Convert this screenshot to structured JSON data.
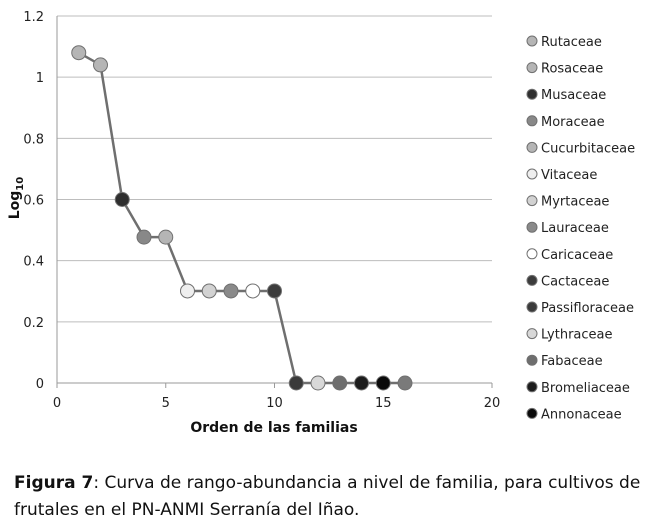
{
  "chart_data": {
    "type": "line",
    "title": "",
    "xlabel": "Orden de las familias",
    "ylabel": "Log",
    "ylabel_sub": "10",
    "xlim": [
      0,
      20
    ],
    "ylim": [
      0,
      1.2
    ],
    "x_ticks": [
      0,
      5,
      10,
      15,
      20
    ],
    "y_ticks": [
      0,
      0.2,
      0.4,
      0.6,
      0.8,
      1,
      1.2
    ],
    "y_tick_labels": [
      "0",
      "0.2",
      "0.4",
      "0.6",
      "0.8",
      "1",
      "1.2"
    ],
    "grid": "horizontal",
    "line_color": "#6f6f6f",
    "legend_position": "right",
    "series": [
      {
        "name": "Rutaceae",
        "x": 1,
        "y": 1.08,
        "color": "#b5b5b5"
      },
      {
        "name": "Rosaceae",
        "x": 2,
        "y": 1.04,
        "color": "#b5b5b5"
      },
      {
        "name": "Musaceae",
        "x": 3,
        "y": 0.6,
        "color": "#2f2f2f"
      },
      {
        "name": "Moraceae",
        "x": 4,
        "y": 0.477,
        "color": "#888888"
      },
      {
        "name": "Cucurbitaceae",
        "x": 5,
        "y": 0.477,
        "color": "#b5b5b5"
      },
      {
        "name": "Vitaceae",
        "x": 6,
        "y": 0.301,
        "color": "#eeeeee"
      },
      {
        "name": "Myrtaceae",
        "x": 7,
        "y": 0.301,
        "color": "#d2d2d2"
      },
      {
        "name": "Lauraceae",
        "x": 8,
        "y": 0.301,
        "color": "#8a8a8a"
      },
      {
        "name": "Caricaceae",
        "x": 9,
        "y": 0.301,
        "color": "#ffffff"
      },
      {
        "name": "Cactaceae",
        "x": 10,
        "y": 0.301,
        "color": "#3c3c3c"
      },
      {
        "name": "Passifloraceae",
        "x": 11,
        "y": 0,
        "color": "#3a3a3a"
      },
      {
        "name": "Lythraceae",
        "x": 12,
        "y": 0,
        "color": "#d8d8d8"
      },
      {
        "name": "Fabaceae",
        "x": 13,
        "y": 0,
        "color": "#6e6e6e"
      },
      {
        "name": "Bromeliaceae",
        "x": 14,
        "y": 0,
        "color": "#1c1c1c"
      },
      {
        "name": "Annonaceae",
        "x": 15,
        "y": 0,
        "color": "#0a0a0a"
      },
      {
        "name": "",
        "x": 16,
        "y": 0,
        "color": "#7a7a7a"
      }
    ]
  },
  "caption": {
    "label": "Figura 7",
    "text": ":  Curva de rango-abundancia a nivel de familia, para cultivos de frutales en el PN-ANMI Serranía del Iñao."
  }
}
